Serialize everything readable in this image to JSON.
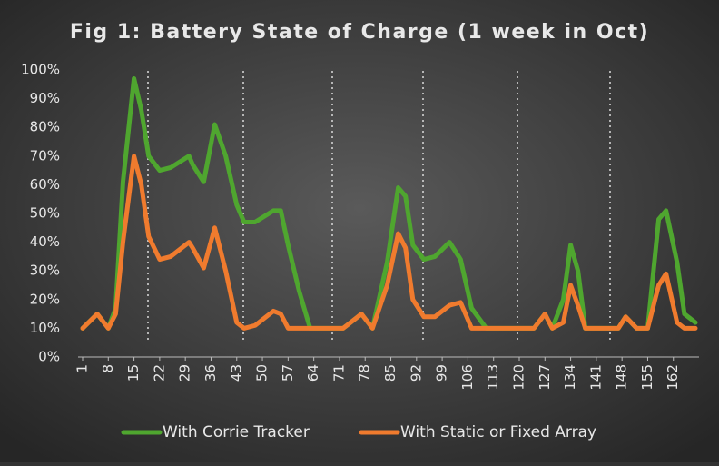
{
  "chart_data": {
    "type": "line",
    "title": "Fig 1: Battery State of Charge (1 week in Oct)",
    "x": [
      1,
      5,
      8,
      10,
      12,
      15,
      17,
      19,
      22,
      25,
      30,
      31,
      34,
      37,
      40,
      43,
      45,
      48,
      53,
      55,
      57,
      60,
      63,
      72,
      77,
      80,
      84,
      87,
      89,
      91,
      94,
      97,
      101,
      104,
      107,
      111,
      124,
      127,
      129,
      132,
      134,
      136,
      138,
      147,
      149,
      152,
      155,
      158,
      160,
      163,
      165,
      168
    ],
    "series": [
      {
        "name": "With Corrie Tracker",
        "color": "#4fa62f",
        "values": [
          10,
          15,
          10,
          17,
          61,
          97,
          86,
          70,
          65,
          66,
          70,
          67,
          61,
          81,
          70,
          53,
          47,
          47,
          51,
          51,
          39,
          23,
          10,
          10,
          15,
          10,
          33,
          59,
          56,
          39,
          34,
          35,
          40,
          34,
          17,
          10,
          10,
          15,
          10,
          20,
          39,
          30,
          10,
          10,
          14,
          10,
          10,
          48,
          51,
          33,
          15,
          12
        ]
      },
      {
        "name": "With Static or Fixed Array",
        "color": "#f07b2e",
        "values": [
          10,
          15,
          10,
          15,
          40,
          70,
          60,
          42,
          34,
          35,
          40,
          38,
          31,
          45,
          30,
          12,
          10,
          11,
          16,
          15,
          10,
          10,
          10,
          10,
          15,
          10,
          25,
          43,
          38,
          20,
          14,
          14,
          18,
          19,
          10,
          10,
          10,
          15,
          10,
          12,
          25,
          18,
          10,
          10,
          14,
          10,
          10,
          25,
          29,
          12,
          10,
          10
        ]
      }
    ],
    "xlim": [
      1,
      168
    ],
    "xticks": [
      1,
      8,
      15,
      22,
      29,
      36,
      43,
      50,
      57,
      64,
      71,
      78,
      85,
      92,
      99,
      106,
      113,
      120,
      127,
      134,
      141,
      148,
      155,
      162
    ],
    "ylim": [
      0,
      100
    ],
    "yticks": [
      {
        "value": 0,
        "label": "0%"
      },
      {
        "value": 10,
        "label": "10%"
      },
      {
        "value": 20,
        "label": "20%"
      },
      {
        "value": 30,
        "label": "30%"
      },
      {
        "value": 40,
        "label": "40%"
      },
      {
        "value": 50,
        "label": "50%"
      },
      {
        "value": 60,
        "label": "60%"
      },
      {
        "value": 70,
        "label": "70%"
      },
      {
        "value": 80,
        "label": "80%"
      },
      {
        "value": 90,
        "label": "90%"
      },
      {
        "value": 100,
        "label": "100%"
      }
    ],
    "legend": "bottom"
  }
}
